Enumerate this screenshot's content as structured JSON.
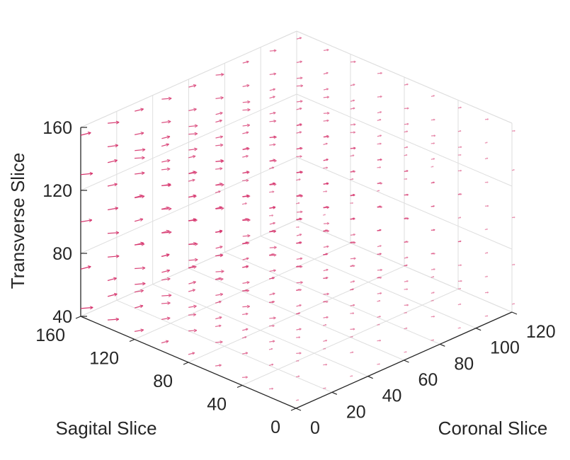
{
  "chart_data": {
    "type": "quiver3d",
    "title": "",
    "xlabel": "Sagital Slice",
    "ylabel": "Coronal Slice",
    "zlabel": "Transverse Slice",
    "xlim": [
      0,
      160
    ],
    "ylim": [
      0,
      120
    ],
    "zlim": [
      40,
      160
    ],
    "xticks": [
      "0",
      "40",
      "80",
      "120",
      "160"
    ],
    "yticks": [
      "0",
      "20",
      "40",
      "60",
      "80",
      "100",
      "120"
    ],
    "zticks": [
      "40",
      "80",
      "120",
      "160"
    ],
    "grid": true,
    "arrow_color": "#d6336c",
    "grid_color": "#dedede",
    "axis_color": "#262626",
    "series": [
      {
        "x_samples": [
          0,
          20,
          40,
          60,
          80,
          100,
          120,
          140,
          160
        ],
        "y_samples": [
          0,
          15,
          30,
          45,
          60,
          75,
          90,
          105,
          120
        ],
        "z_samples": [
          45,
          70,
          100,
          130,
          155
        ],
        "vector_trend": "arrows point toward increasing Coronal Slice; magnitude largest at high Sagital Slice and decreasing toward high Coronal Slice"
      }
    ]
  }
}
